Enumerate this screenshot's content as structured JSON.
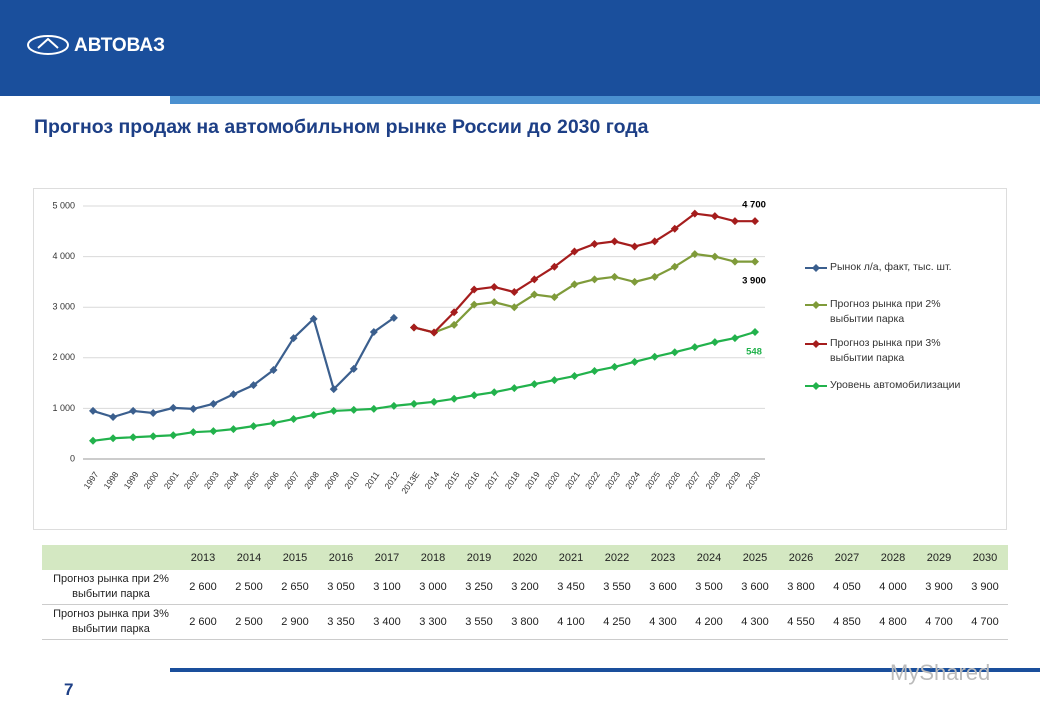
{
  "header": {
    "logo": "АВТОВАЗ",
    "title": "Прогноз продаж на автомобильном рынке России до 2030 года",
    "page": "7",
    "watermark": "MyShared"
  },
  "chart_data": {
    "type": "line",
    "categories": [
      "1997",
      "1998",
      "1999",
      "2000",
      "2001",
      "2002",
      "2003",
      "2004",
      "2005",
      "2006",
      "2007",
      "2008",
      "2009",
      "2010",
      "2011",
      "2012",
      "2013E",
      "2014",
      "2015",
      "2016",
      "2017",
      "2018",
      "2019",
      "2020",
      "2021",
      "2022",
      "2023",
      "2024",
      "2025",
      "2026",
      "2027",
      "2028",
      "2029",
      "2030"
    ],
    "ylim": [
      0,
      5000
    ],
    "yticks": [
      0,
      {
        "value": 1000,
        "label": "1 000"
      },
      {
        "value": 2000,
        "label": "2 000"
      },
      {
        "value": 3000,
        "label": "3 000"
      },
      {
        "value": 4000,
        "label": "4 000"
      },
      {
        "value": 5000,
        "label": "5 000"
      }
    ],
    "grid": true,
    "legend": "right",
    "series": [
      {
        "name": "Рынок л/а, факт, тыс. шт.",
        "color": "#3b5f8e",
        "values": [
          950,
          830,
          950,
          910,
          1010,
          990,
          1090,
          1280,
          1460,
          1760,
          2390,
          2770,
          1380,
          1780,
          2510,
          2790,
          null,
          null,
          null,
          null,
          null,
          null,
          null,
          null,
          null,
          null,
          null,
          null,
          null,
          null,
          null,
          null,
          null,
          null
        ]
      },
      {
        "name": "Прогноз рынка при 2% выбытии парка",
        "color": "#7f9b3a",
        "values": [
          null,
          null,
          null,
          null,
          null,
          null,
          null,
          null,
          null,
          null,
          null,
          null,
          null,
          null,
          null,
          null,
          2600,
          2500,
          2650,
          3050,
          3100,
          3000,
          3250,
          3200,
          3450,
          3550,
          3600,
          3500,
          3600,
          3800,
          4050,
          4000,
          3900,
          3900
        ]
      },
      {
        "name": "Прогноз рынка при 3% выбытии парка",
        "color": "#a51d1d",
        "values": [
          null,
          null,
          null,
          null,
          null,
          null,
          null,
          null,
          null,
          null,
          null,
          null,
          null,
          null,
          null,
          null,
          2600,
          2500,
          2900,
          3350,
          3400,
          3300,
          3550,
          3800,
          4100,
          4250,
          4300,
          4200,
          4300,
          4550,
          4850,
          4800,
          4700,
          4700
        ]
      },
      {
        "name": "Уровень автомобилизации",
        "color": "#22b24c",
        "values": [
          360,
          410,
          430,
          450,
          470,
          530,
          550,
          590,
          650,
          710,
          790,
          870,
          950,
          970,
          990,
          1050,
          1090,
          1130,
          1190,
          1260,
          1320,
          1400,
          1480,
          1560,
          1640,
          1740,
          1820,
          1920,
          2020,
          2110,
          2210,
          2310,
          2390,
          2510
        ]
      }
    ],
    "annotations": [
      "4 700",
      "3 900",
      "548"
    ]
  },
  "table": {
    "columns": [
      "2013",
      "2014",
      "2015",
      "2016",
      "2017",
      "2018",
      "2019",
      "2020",
      "2021",
      "2022",
      "2023",
      "2024",
      "2025",
      "2026",
      "2027",
      "2028",
      "2029",
      "2030"
    ],
    "rows": [
      {
        "label": "Прогноз рынка при 2% выбытии парка",
        "cells": [
          "2 600",
          "2 500",
          "2 650",
          "3 050",
          "3 100",
          "3 000",
          "3 250",
          "3 200",
          "3 450",
          "3 550",
          "3 600",
          "3 500",
          "3 600",
          "3 800",
          "4 050",
          "4 000",
          "3 900",
          "3 900"
        ]
      },
      {
        "label": "Прогноз рынка при 3% выбытии парка",
        "cells": [
          "2 600",
          "2 500",
          "2 900",
          "3 350",
          "3 400",
          "3 300",
          "3 550",
          "3 800",
          "4 100",
          "4 250",
          "4 300",
          "4 200",
          "4 300",
          "4 550",
          "4 850",
          "4 800",
          "4 700",
          "4 700"
        ]
      }
    ]
  }
}
